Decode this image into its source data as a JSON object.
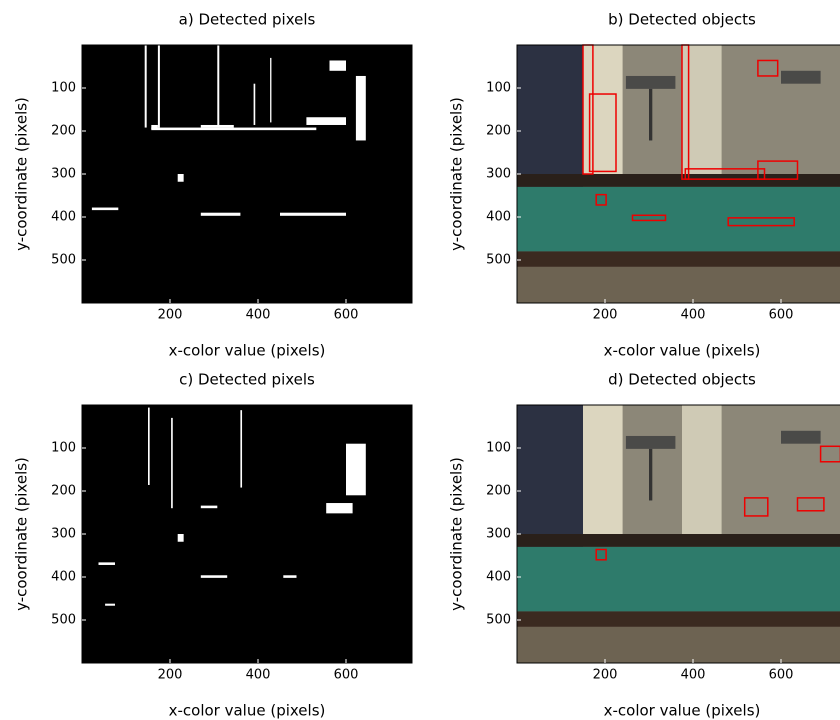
{
  "chart_data": [
    {
      "type": "image",
      "title": "a) Detected pixels",
      "x_label": "x-color value (pixels)",
      "y_label": "y-coordinate (pixels)",
      "xlim": [
        0,
        750
      ],
      "ylim": [
        0,
        600
      ],
      "y_reversed": true,
      "xticks": [
        200,
        400,
        600
      ],
      "yticks": [
        100,
        200,
        300,
        400,
        500
      ]
    },
    {
      "type": "image",
      "title": "b) Detected objects",
      "x_label": "x-color value (pixels)",
      "y_label": "y-coordinate (pixels)",
      "xlim": [
        0,
        750
      ],
      "ylim": [
        0,
        600
      ],
      "y_reversed": true,
      "xticks": [
        200,
        400,
        600
      ],
      "yticks": [
        100,
        200,
        300,
        400,
        500
      ]
    },
    {
      "type": "image",
      "title": "c) Detected pixels",
      "x_label": "x-color value (pixels)",
      "y_label": "y-coordinate (pixels)",
      "xlim": [
        0,
        750
      ],
      "ylim": [
        0,
        600
      ],
      "y_reversed": true,
      "xticks": [
        200,
        400,
        600
      ],
      "yticks": [
        100,
        200,
        300,
        400,
        500
      ]
    },
    {
      "type": "image",
      "title": "d) Detected objects",
      "x_label": "x-color value (pixels)",
      "y_label": "y-coordinate (pixels)",
      "xlim": [
        0,
        750
      ],
      "ylim": [
        0,
        600
      ],
      "y_reversed": true,
      "xticks": [
        200,
        400,
        600
      ],
      "yticks": [
        100,
        200,
        300,
        400,
        500
      ]
    }
  ]
}
